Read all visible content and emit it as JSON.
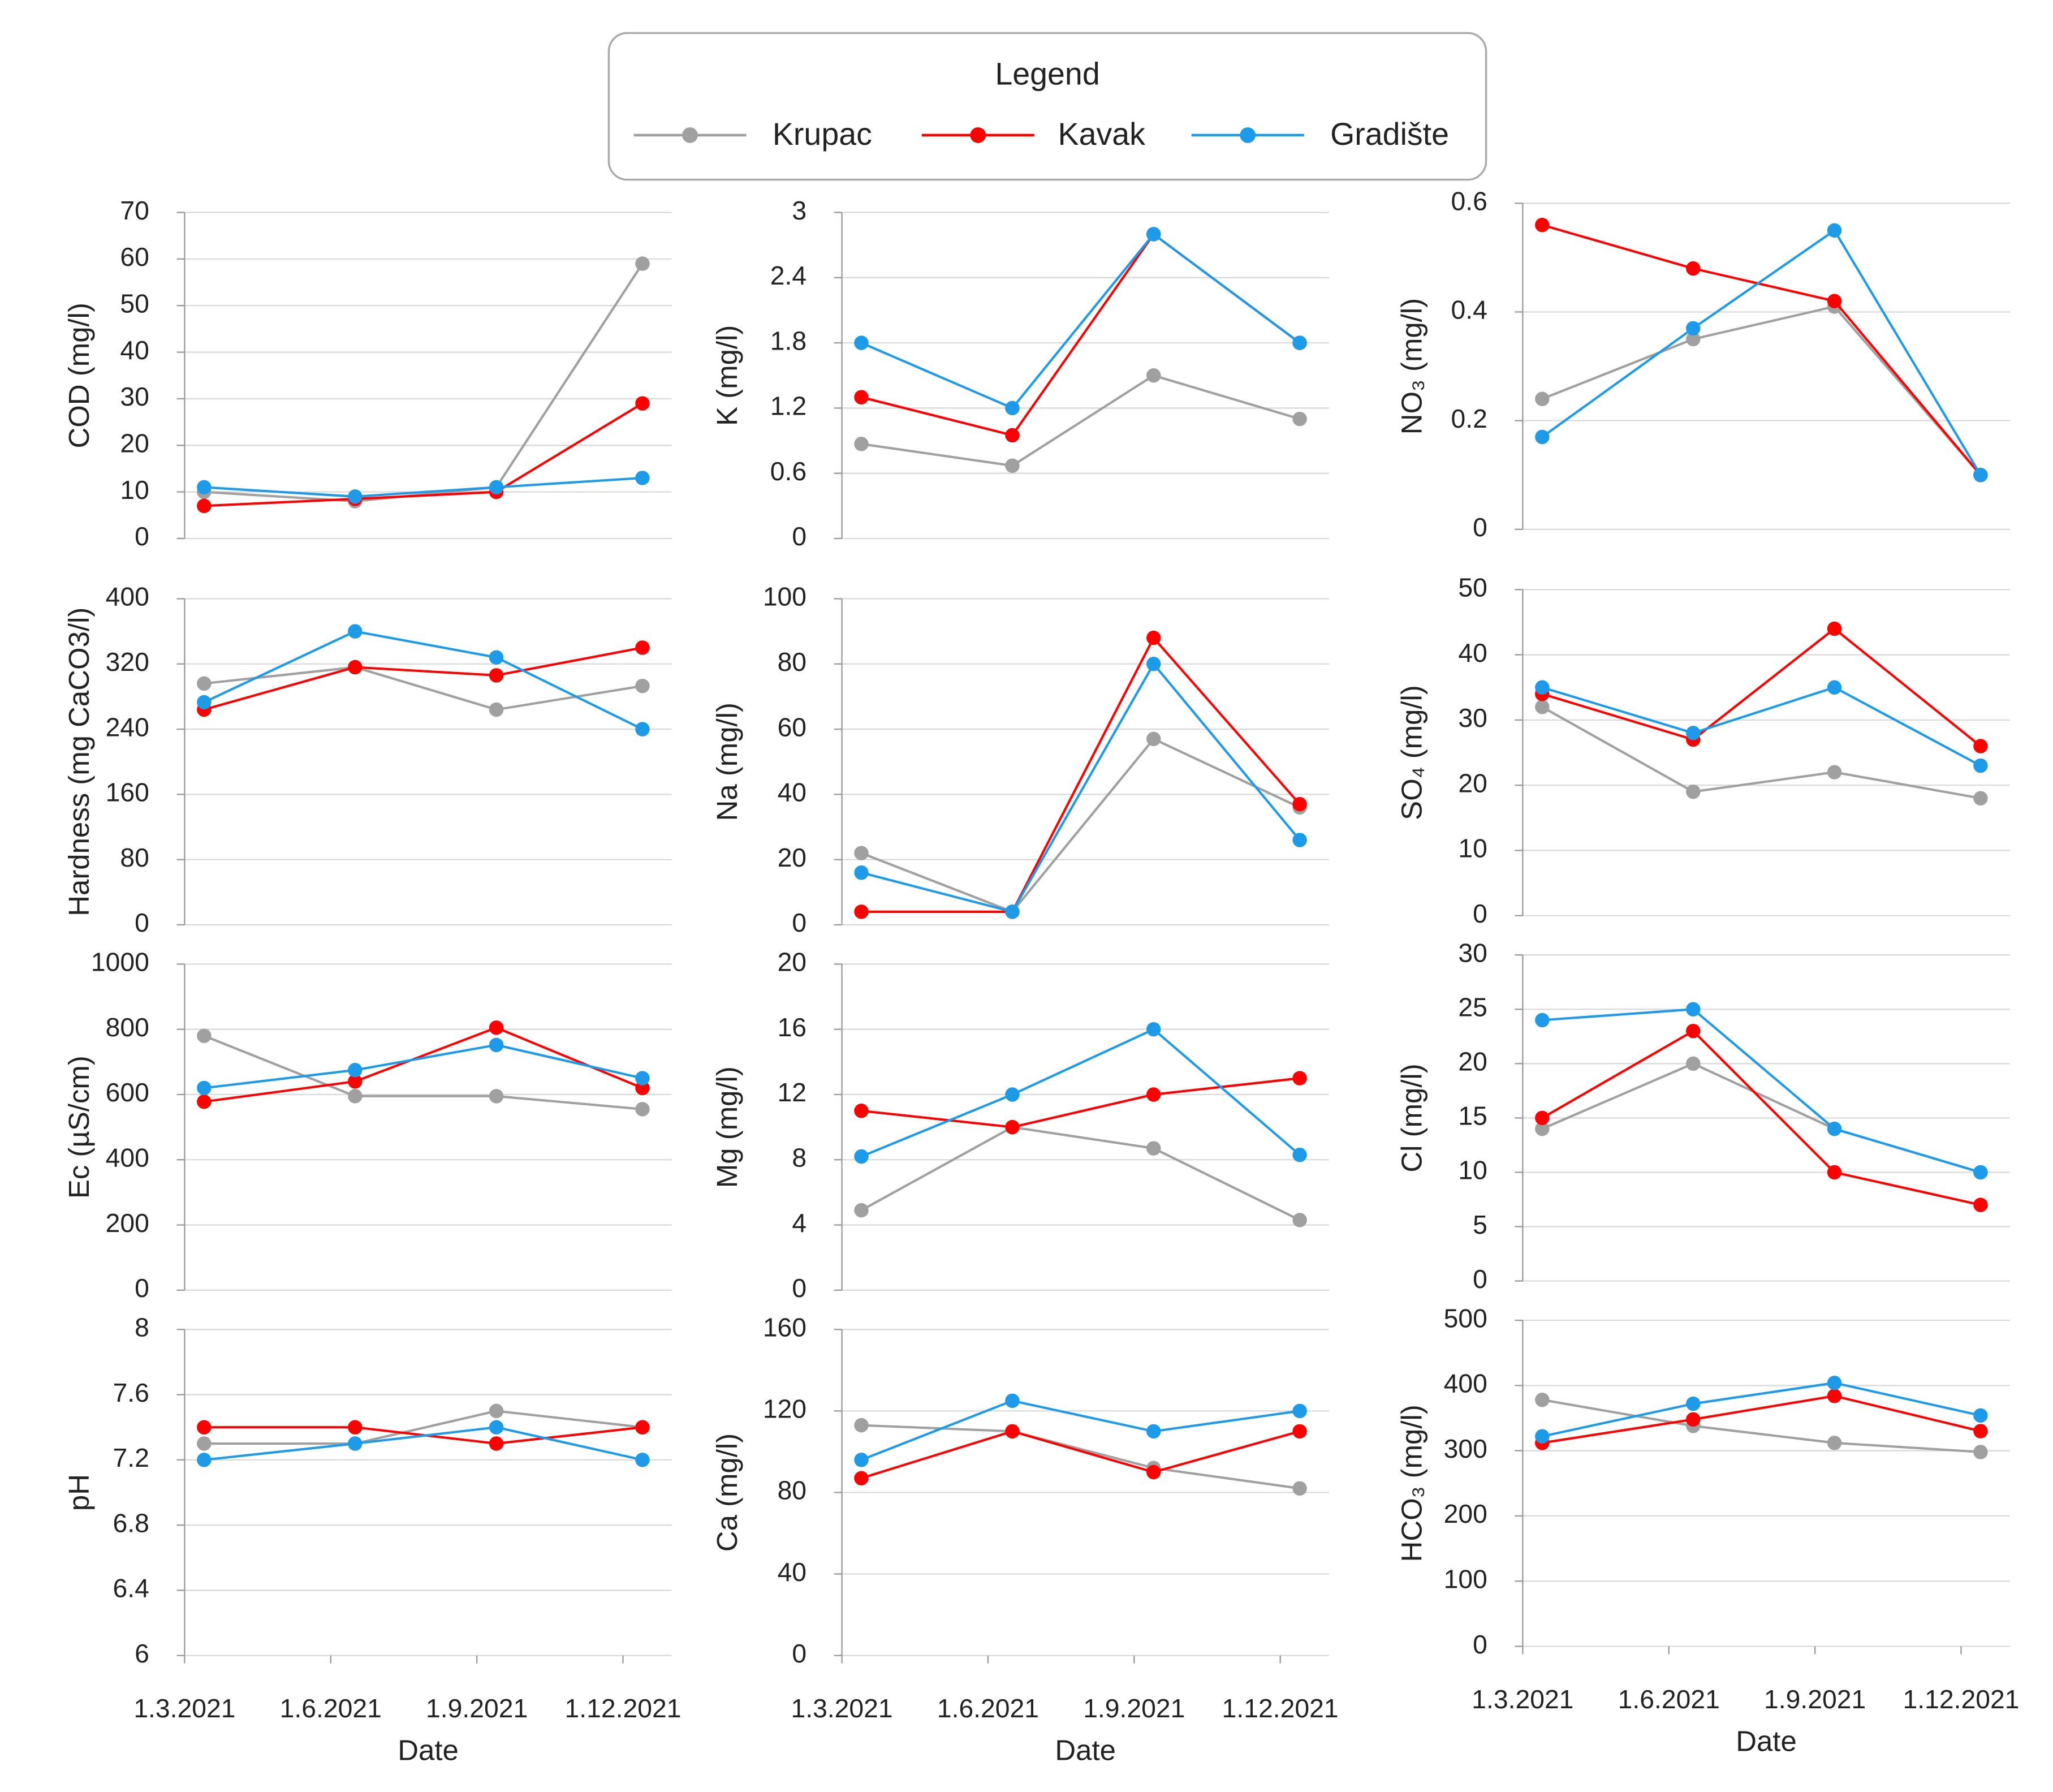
{
  "legend": {
    "title": "Legend"
  },
  "chart_data": [
    {
      "type": "line",
      "ylabel": "COD (mg/l)",
      "x": [
        3.4,
        6.5,
        9.4,
        12.4
      ],
      "xlim": [
        3,
        13
      ],
      "ylim": [
        0,
        70
      ],
      "yticks": [
        0,
        10,
        20,
        30,
        40,
        50,
        60,
        70
      ],
      "series": [
        {
          "name": "Krupac",
          "color": "#a0a0a0",
          "values": [
            10,
            8,
            11,
            59
          ]
        },
        {
          "name": "Kavak",
          "color": "#ff0000",
          "values": [
            7,
            8.5,
            10,
            29
          ]
        },
        {
          "name": "Gradište",
          "color": "#1e9be8",
          "values": [
            11,
            9,
            11,
            13
          ]
        }
      ]
    },
    {
      "type": "line",
      "ylabel": "K (mg/l)",
      "x": [
        3.4,
        6.5,
        9.4,
        12.4
      ],
      "xlim": [
        3,
        13
      ],
      "ylim": [
        0,
        3
      ],
      "yticks": [
        0,
        0.6,
        1.2,
        1.8,
        2.4,
        3
      ],
      "series": [
        {
          "name": "Krupac",
          "color": "#a0a0a0",
          "values": [
            0.87,
            0.67,
            1.5,
            1.1
          ]
        },
        {
          "name": "Kavak",
          "color": "#ff0000",
          "values": [
            1.3,
            0.95,
            2.8,
            1.8
          ]
        },
        {
          "name": "Gradište",
          "color": "#1e9be8",
          "values": [
            1.8,
            1.2,
            2.8,
            1.8
          ]
        }
      ]
    },
    {
      "type": "line",
      "ylabel": "NO₃ (mg/l)",
      "x": [
        3.4,
        6.5,
        9.4,
        12.4
      ],
      "xlim": [
        3,
        13
      ],
      "ylim": [
        0,
        0.6
      ],
      "yticks": [
        0,
        0.2,
        0.4,
        0.6
      ],
      "series": [
        {
          "name": "Krupac",
          "color": "#a0a0a0",
          "values": [
            0.24,
            0.35,
            0.41,
            0.1
          ]
        },
        {
          "name": "Kavak",
          "color": "#ff0000",
          "values": [
            0.56,
            0.48,
            0.42,
            0.1
          ]
        },
        {
          "name": "Gradište",
          "color": "#1e9be8",
          "values": [
            0.17,
            0.37,
            0.55,
            0.1
          ]
        }
      ]
    },
    {
      "type": "line",
      "ylabel": "Hardness (mg CaCO3/l)",
      "x": [
        3.4,
        6.5,
        9.4,
        12.4
      ],
      "xlim": [
        3,
        13
      ],
      "ylim": [
        0,
        400
      ],
      "yticks": [
        0,
        80,
        160,
        240,
        320,
        400
      ],
      "series": [
        {
          "name": "Krupac",
          "color": "#a0a0a0",
          "values": [
            296,
            316,
            264,
            293
          ]
        },
        {
          "name": "Kavak",
          "color": "#ff0000",
          "values": [
            264,
            316,
            306,
            340
          ]
        },
        {
          "name": "Gradište",
          "color": "#1e9be8",
          "values": [
            273,
            360,
            328,
            240
          ]
        }
      ]
    },
    {
      "type": "line",
      "ylabel": "Na (mg/l)",
      "x": [
        3.4,
        6.5,
        9.4,
        12.4
      ],
      "xlim": [
        3,
        13
      ],
      "ylim": [
        0,
        100
      ],
      "yticks": [
        0,
        20,
        40,
        60,
        80,
        100
      ],
      "series": [
        {
          "name": "Krupac",
          "color": "#a0a0a0",
          "values": [
            22,
            4,
            57,
            36
          ]
        },
        {
          "name": "Kavak",
          "color": "#ff0000",
          "values": [
            4,
            4,
            88,
            37
          ]
        },
        {
          "name": "Gradište",
          "color": "#1e9be8",
          "values": [
            16,
            4,
            80,
            26
          ]
        }
      ]
    },
    {
      "type": "line",
      "ylabel": "SO₄ (mg/l)",
      "x": [
        3.4,
        6.5,
        9.4,
        12.4
      ],
      "xlim": [
        3,
        13
      ],
      "ylim": [
        0,
        50
      ],
      "yticks": [
        0,
        10,
        20,
        30,
        40,
        50
      ],
      "series": [
        {
          "name": "Krupac",
          "color": "#a0a0a0",
          "values": [
            32,
            19,
            22,
            18
          ]
        },
        {
          "name": "Kavak",
          "color": "#ff0000",
          "values": [
            34,
            27,
            44,
            26
          ]
        },
        {
          "name": "Gradište",
          "color": "#1e9be8",
          "values": [
            35,
            28,
            35,
            23
          ]
        }
      ]
    },
    {
      "type": "line",
      "ylabel": "Ec (µS/cm)",
      "x": [
        3.4,
        6.5,
        9.4,
        12.4
      ],
      "xlim": [
        3,
        13
      ],
      "ylim": [
        0,
        1000
      ],
      "yticks": [
        0,
        200,
        400,
        600,
        800,
        1000
      ],
      "series": [
        {
          "name": "Krupac",
          "color": "#a0a0a0",
          "values": [
            780,
            595,
            595,
            555
          ]
        },
        {
          "name": "Kavak",
          "color": "#ff0000",
          "values": [
            578,
            640,
            805,
            620
          ]
        },
        {
          "name": "Gradište",
          "color": "#1e9be8",
          "values": [
            620,
            675,
            752,
            650
          ]
        }
      ]
    },
    {
      "type": "line",
      "ylabel": "Mg (mg/l)",
      "x": [
        3.4,
        6.5,
        9.4,
        12.4
      ],
      "xlim": [
        3,
        13
      ],
      "ylim": [
        0,
        20
      ],
      "yticks": [
        0,
        4,
        8,
        12,
        16,
        20
      ],
      "series": [
        {
          "name": "Krupac",
          "color": "#a0a0a0",
          "values": [
            4.9,
            10,
            8.7,
            4.3
          ]
        },
        {
          "name": "Kavak",
          "color": "#ff0000",
          "values": [
            11,
            10,
            12,
            13
          ]
        },
        {
          "name": "Gradište",
          "color": "#1e9be8",
          "values": [
            8.2,
            12,
            16,
            8.3
          ]
        }
      ]
    },
    {
      "type": "line",
      "ylabel": "Cl (mg/l)",
      "x": [
        3.4,
        6.5,
        9.4,
        12.4
      ],
      "xlim": [
        3,
        13
      ],
      "ylim": [
        0,
        30
      ],
      "yticks": [
        0,
        5,
        10,
        15,
        20,
        25,
        30
      ],
      "series": [
        {
          "name": "Krupac",
          "color": "#a0a0a0",
          "values": [
            14,
            20,
            14,
            10
          ]
        },
        {
          "name": "Kavak",
          "color": "#ff0000",
          "values": [
            15,
            23,
            10,
            7
          ]
        },
        {
          "name": "Gradište",
          "color": "#1e9be8",
          "values": [
            24,
            25,
            14,
            10
          ]
        }
      ]
    },
    {
      "type": "line",
      "ylabel": "pH",
      "xlabel": "Date",
      "x": [
        3.4,
        6.5,
        9.4,
        12.4
      ],
      "xlim": [
        3,
        13
      ],
      "xticks": [
        {
          "value": 3,
          "label": "1.3.2021"
        },
        {
          "value": 6,
          "label": "1.6.2021"
        },
        {
          "value": 9,
          "label": "1.9.2021"
        },
        {
          "value": 12,
          "label": "1.12.2021"
        }
      ],
      "ylim": [
        6,
        8
      ],
      "yticks": [
        6,
        6.4,
        6.8,
        7.2,
        7.6,
        8
      ],
      "series": [
        {
          "name": "Krupac",
          "color": "#a0a0a0",
          "values": [
            7.3,
            7.3,
            7.5,
            7.4
          ]
        },
        {
          "name": "Kavak",
          "color": "#ff0000",
          "values": [
            7.4,
            7.4,
            7.3,
            7.4
          ]
        },
        {
          "name": "Gradište",
          "color": "#1e9be8",
          "values": [
            7.2,
            7.3,
            7.4,
            7.2
          ]
        }
      ]
    },
    {
      "type": "line",
      "ylabel": "Ca (mg/l)",
      "xlabel": "Date",
      "x": [
        3.4,
        6.5,
        9.4,
        12.4
      ],
      "xlim": [
        3,
        13
      ],
      "xticks": [
        {
          "value": 3,
          "label": "1.3.2021"
        },
        {
          "value": 6,
          "label": "1.6.2021"
        },
        {
          "value": 9,
          "label": "1.9.2021"
        },
        {
          "value": 12,
          "label": "1.12.2021"
        }
      ],
      "ylim": [
        0,
        160
      ],
      "yticks": [
        0,
        40,
        80,
        120,
        160
      ],
      "series": [
        {
          "name": "Krupac",
          "color": "#a0a0a0",
          "values": [
            113,
            110,
            92,
            82
          ]
        },
        {
          "name": "Kavak",
          "color": "#ff0000",
          "values": [
            87,
            110,
            90,
            110
          ]
        },
        {
          "name": "Gradište",
          "color": "#1e9be8",
          "values": [
            96,
            125,
            110,
            120
          ]
        }
      ]
    },
    {
      "type": "line",
      "ylabel": "HCO₃ (mg/l)",
      "xlabel": "Date",
      "x": [
        3.4,
        6.5,
        9.4,
        12.4
      ],
      "xlim": [
        3,
        13
      ],
      "xticks": [
        {
          "value": 3,
          "label": "1.3.2021"
        },
        {
          "value": 6,
          "label": "1.6.2021"
        },
        {
          "value": 9,
          "label": "1.9.2021"
        },
        {
          "value": 12,
          "label": "1.12.2021"
        }
      ],
      "ylim": [
        0,
        500
      ],
      "yticks": [
        0,
        100,
        200,
        300,
        400,
        500
      ],
      "series": [
        {
          "name": "Krupac",
          "color": "#a0a0a0",
          "values": [
            378,
            338,
            312,
            298
          ]
        },
        {
          "name": "Kavak",
          "color": "#ff0000",
          "values": [
            312,
            348,
            384,
            330
          ]
        },
        {
          "name": "Gradište",
          "color": "#1e9be8",
          "values": [
            322,
            372,
            404,
            354
          ]
        }
      ]
    }
  ]
}
